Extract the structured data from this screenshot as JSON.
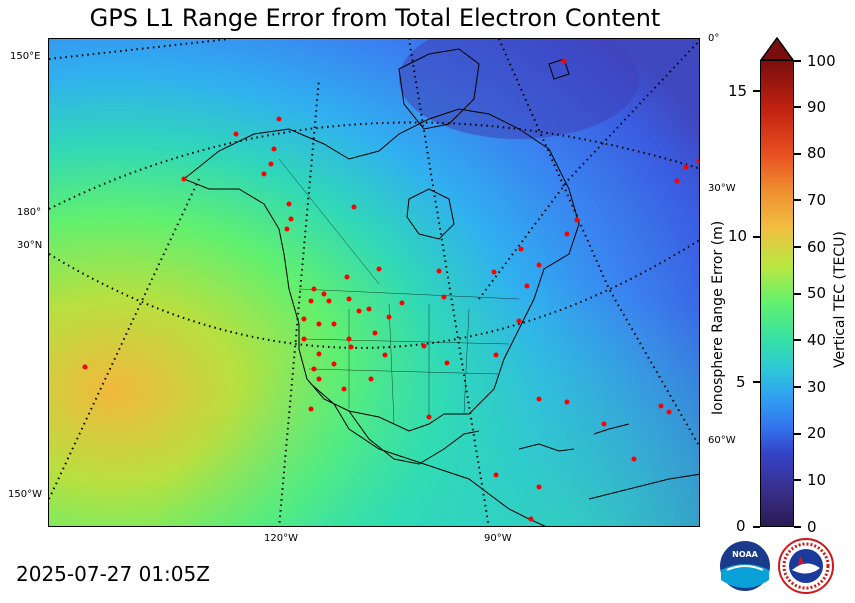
{
  "title": "GPS L1 Range Error from Total Electron Content",
  "timestamp": "2025-07-27 01:05Z",
  "map_labels": {
    "lon_150e": "150°E",
    "lon_180": "180°",
    "lat_30n": "30°N",
    "lon_150w": "150°W",
    "lon_120w": "120°W",
    "lon_90w": "90°W",
    "lon_0": "0°",
    "lon_30w": "30°W",
    "lon_60w": "60°W"
  },
  "left_axis": {
    "label": "Ionosphere Range Error (m)",
    "ticks": [
      "0",
      "5",
      "10",
      "15"
    ]
  },
  "right_axis": {
    "label": "Vertical TEC (TECU)",
    "ticks": [
      "0",
      "10",
      "20",
      "30",
      "40",
      "50",
      "60",
      "70",
      "80",
      "90",
      "100"
    ]
  },
  "colors": {
    "high_tec": "#f0c040",
    "mid_tec": "#40e0a0",
    "low_tec": "#3070f0",
    "very_low_tec": "#4040c8",
    "station": "#ff0000"
  },
  "logos": [
    "noaa-logo",
    "national-weather-service-logo"
  ]
}
